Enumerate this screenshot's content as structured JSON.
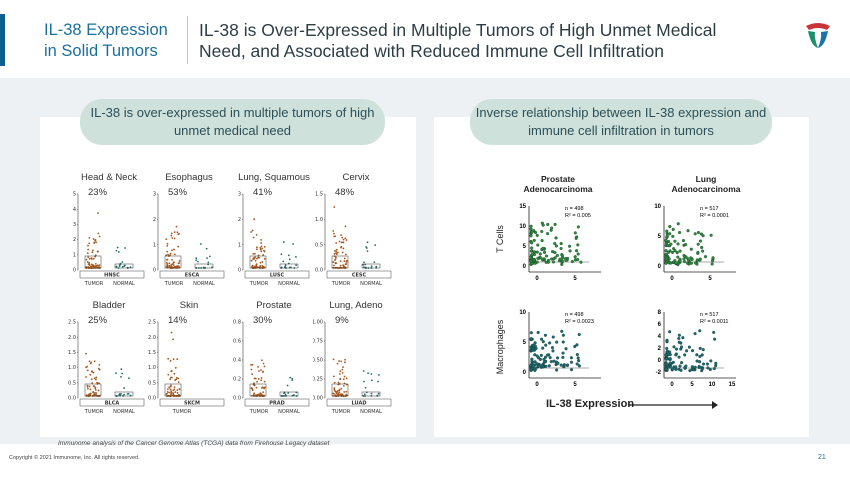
{
  "header": {
    "section_title": "IL-38 Expression in Solid Tumors",
    "main_title": "IL-38 is Over-Expressed in Multiple Tumors of High Unmet Medical Need, and Associated with Reduced Immune Cell Infiltration"
  },
  "left_panel": {
    "pill_text": "IL-38 is over-expressed in multiple tumors of high unmet medical need",
    "charts": [
      {
        "title": "Head & Neck",
        "pct": "23%",
        "code": "HNSC",
        "groups": [
          "TUMOR",
          "NORMAL"
        ],
        "ticks": [
          "5",
          "4",
          "3",
          "2",
          "1",
          "0"
        ],
        "ymax": 5
      },
      {
        "title": "Esophagus",
        "pct": "53%",
        "code": "ESCA",
        "groups": [
          "TUMOR",
          "NORMAL"
        ],
        "ticks": [
          "3",
          "2",
          "1",
          "0"
        ],
        "ymax": 3
      },
      {
        "title": "Lung, Squamous",
        "pct": "41%",
        "code": "LUSC",
        "groups": [
          "TUMOR",
          "NORMAL"
        ],
        "ticks": [
          "3",
          "2",
          "1",
          "0"
        ],
        "ymax": 3
      },
      {
        "title": "Cervix",
        "pct": "48%",
        "code": "CESC",
        "groups": [
          "TUMOR",
          "NORMAL"
        ],
        "ticks": [
          "1.5",
          "1.0",
          "0.5",
          "0.0"
        ],
        "ymax": 1.5
      },
      {
        "title": "Bladder",
        "pct": "25%",
        "code": "BLCA",
        "groups": [
          "TUMOR",
          "NORMAL"
        ],
        "ticks": [
          "2.5",
          "2.0",
          "1.5",
          "1.0",
          "0.5",
          "0.0"
        ],
        "ymax": 2.5
      },
      {
        "title": "Skin",
        "pct": "14%",
        "code": "SKCM",
        "groups": [
          "TUMOR"
        ],
        "ticks": [
          "2.5",
          "2.0",
          "1.5",
          "1.0",
          "0.5",
          "0.0"
        ],
        "ymax": 2.5
      },
      {
        "title": "Prostate",
        "pct": "30%",
        "code": "PRAD",
        "groups": [
          "TUMOR",
          "NORMAL"
        ],
        "ticks": [
          "0.8",
          "0.6",
          "0.4",
          "0.2",
          "0.0"
        ],
        "ymax": 0.8
      },
      {
        "title": "Lung, Adeno",
        "pct": "9%",
        "code": "LUAD",
        "groups": [
          "TUMOR",
          "NORMAL"
        ],
        "ticks": [
          "1.00",
          "0.75",
          "0.50",
          "0.25",
          "0.00"
        ],
        "ymax": 1.0
      }
    ]
  },
  "right_panel": {
    "pill_text": "Inverse relationship between IL-38 expression and immune cell infiltration in tumors",
    "col_titles": [
      "Prostate Adenocarcinoma",
      "Lung Adenocarcinoma"
    ],
    "row_labels": [
      "T Cells",
      "Macrophages"
    ],
    "x_axis_label": "IL-38 Expression",
    "plots": [
      {
        "n": "n = 498",
        "r2": "R² = 0.005",
        "yticks": [
          "15",
          "10",
          "5",
          "0"
        ],
        "xticks": [
          "0",
          "5"
        ],
        "color": "#2f8a3a"
      },
      {
        "n": "n = 517",
        "r2": "R² = 0.0001",
        "yticks": [
          "10",
          "5",
          "0"
        ],
        "xticks": [
          "0",
          "5"
        ],
        "color": "#2f8a3a"
      },
      {
        "n": "n = 498",
        "r2": "R² = 0.0023",
        "yticks": [
          "10",
          "5",
          "0"
        ],
        "xticks": [
          "0",
          "5"
        ],
        "color": "#1d6a73"
      },
      {
        "n": "n = 517",
        "r2": "R² = 0.0011",
        "yticks": [
          "8",
          "6",
          "4",
          "2",
          "0",
          "-2"
        ],
        "xticks": [
          "0",
          "5",
          "10",
          "15"
        ],
        "color": "#1d6a73"
      }
    ]
  },
  "footer": {
    "caption": "Immunome analysis of the Cancer Genome Atlas (TCGA) data from Firehouse Legacy dataset",
    "copyright": "Copyright © 2021 Immunome, Inc. All rights reserved.",
    "page_number": "21"
  },
  "colors": {
    "accent": "#0c5e8c",
    "tumor": "#a6561a",
    "normal": "#1f6f6a",
    "pill": "#cfe1db"
  },
  "icons": {
    "logo": "immunome-logo-icon"
  }
}
